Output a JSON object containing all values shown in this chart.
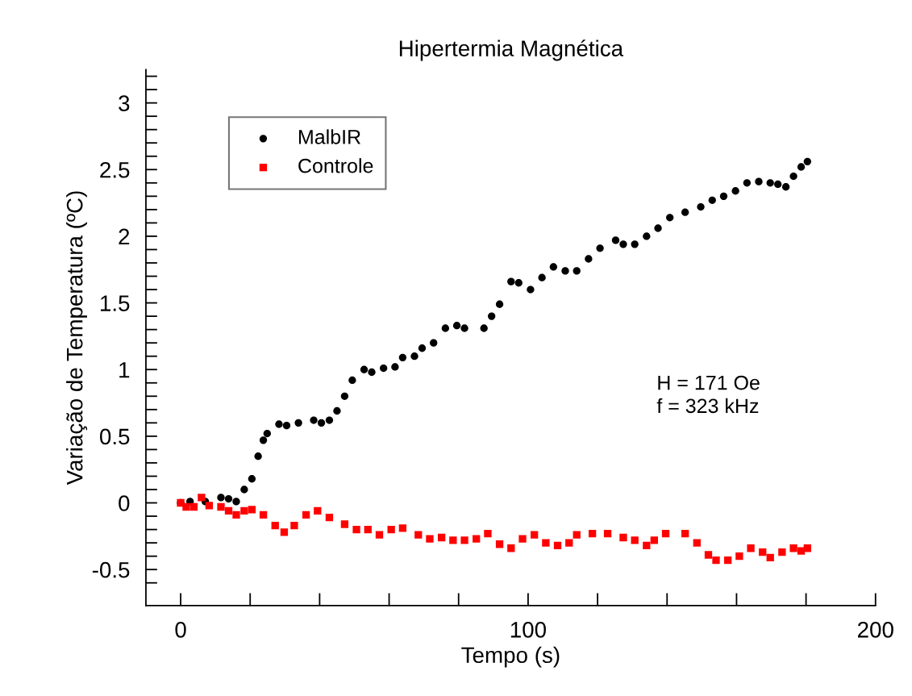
{
  "chart_data": {
    "type": "scatter",
    "title": "Hipertermia Magnética",
    "xlabel": "Tempo (s)",
    "ylabel": "Variação de Temperatura (ºC)",
    "annotations": [
      "H = 171 Oe\nf = 323 kHz"
    ],
    "xlim": [
      -10,
      200
    ],
    "ylim": [
      -0.77,
      3.25
    ],
    "xticks": [
      0,
      {
        "value": 20,
        "label": null
      },
      {
        "value": 40,
        "label": null
      },
      {
        "value": 60,
        "label": null
      },
      {
        "value": 80,
        "label": null
      },
      100,
      {
        "value": 120,
        "label": null
      },
      {
        "value": 140,
        "label": null
      },
      {
        "value": 160,
        "label": null
      },
      {
        "value": 180,
        "label": null
      },
      200
    ],
    "yticks": [
      {
        "value": -0.6,
        "label": null
      },
      -0.5,
      {
        "value": -0.4,
        "label": null
      },
      {
        "value": -0.3,
        "label": null
      },
      {
        "value": -0.2,
        "label": null
      },
      {
        "value": -0.1,
        "label": null
      },
      0,
      {
        "value": 0.1,
        "label": null
      },
      {
        "value": 0.2,
        "label": null
      },
      {
        "value": 0.3,
        "label": null
      },
      {
        "value": 0.4,
        "label": null
      },
      0.5,
      {
        "value": 0.6,
        "label": null
      },
      {
        "value": 0.7,
        "label": null
      },
      {
        "value": 0.8,
        "label": null
      },
      {
        "value": 0.9,
        "label": null
      },
      1,
      {
        "value": 1.1,
        "label": null
      },
      {
        "value": 1.2,
        "label": null
      },
      {
        "value": 1.3,
        "label": null
      },
      {
        "value": 1.4,
        "label": null
      },
      1.5,
      {
        "value": 1.6,
        "label": null
      },
      {
        "value": 1.7,
        "label": null
      },
      {
        "value": 1.8,
        "label": null
      },
      {
        "value": 1.9,
        "label": null
      },
      2,
      {
        "value": 2.1,
        "label": null
      },
      {
        "value": 2.2,
        "label": null
      },
      {
        "value": 2.3,
        "label": null
      },
      {
        "value": 2.4,
        "label": null
      },
      2.5,
      {
        "value": 2.6,
        "label": null
      },
      {
        "value": 2.7,
        "label": null
      },
      {
        "value": 2.8,
        "label": null
      },
      {
        "value": 2.9,
        "label": null
      },
      3,
      {
        "value": 3.1,
        "label": null
      },
      {
        "value": 3.2,
        "label": null
      }
    ],
    "grid": false,
    "legend": "top left",
    "series": [
      {
        "name": "MalbIR",
        "color": "#000000",
        "marker": "circle",
        "x": [
          0,
          2.7,
          7.1,
          11.6,
          13.8,
          16.0,
          18.3,
          20.5,
          22.3,
          23.8,
          24.9,
          28.3,
          30.5,
          33.9,
          38.3,
          40.5,
          42.8,
          45.0,
          47.2,
          49.4,
          52.8,
          55.0,
          58.4,
          61.7,
          63.9,
          67.3,
          69.5,
          72.8,
          76.2,
          79.5,
          81.7,
          87.3,
          89.5,
          91.8,
          95.1,
          97.3,
          100.7,
          104.0,
          107.3,
          110.7,
          114.0,
          117.4,
          120.7,
          125.2,
          127.4,
          130.7,
          134.1,
          137.4,
          140.8,
          145.2,
          149.7,
          153.0,
          156.3,
          159.7,
          163.0,
          166.4,
          169.7,
          171.9,
          174.2,
          176.4,
          178.6,
          180.4
        ],
        "values": [
          0,
          0.01,
          0.01,
          0.04,
          0.03,
          0.01,
          0.1,
          0.18,
          0.35,
          0.47,
          0.52,
          0.59,
          0.58,
          0.6,
          0.62,
          0.6,
          0.62,
          0.69,
          0.8,
          0.92,
          1.0,
          0.98,
          1.01,
          1.02,
          1.09,
          1.1,
          1.16,
          1.2,
          1.31,
          1.33,
          1.31,
          1.31,
          1.4,
          1.49,
          1.66,
          1.65,
          1.6,
          1.69,
          1.77,
          1.74,
          1.74,
          1.83,
          1.91,
          1.97,
          1.94,
          1.94,
          2.0,
          2.06,
          2.14,
          2.18,
          2.22,
          2.27,
          2.3,
          2.34,
          2.4,
          2.41,
          2.4,
          2.39,
          2.37,
          2.45,
          2.52,
          2.56
        ]
      },
      {
        "name": "Controle",
        "color": "#ff0000",
        "marker": "square",
        "x": [
          0,
          1.6,
          3.8,
          6.0,
          8.2,
          11.6,
          13.8,
          16.0,
          18.3,
          20.5,
          23.8,
          27.2,
          29.8,
          32.7,
          36.1,
          39.4,
          42.8,
          47.2,
          50.6,
          53.9,
          57.2,
          60.6,
          63.9,
          68.4,
          71.7,
          75.1,
          78.4,
          81.7,
          85.1,
          88.4,
          91.8,
          95.1,
          98.4,
          101.8,
          105.1,
          108.5,
          111.8,
          114.0,
          118.5,
          122.9,
          127.4,
          130.7,
          134.1,
          136.3,
          139.6,
          145.2,
          148.6,
          151.9,
          154.1,
          157.5,
          160.8,
          164.1,
          167.5,
          169.7,
          173.1,
          176.4,
          178.6,
          180.4
        ],
        "values": [
          0,
          -0.03,
          -0.03,
          0.04,
          -0.02,
          -0.03,
          -0.06,
          -0.09,
          -0.06,
          -0.05,
          -0.09,
          -0.17,
          -0.22,
          -0.17,
          -0.09,
          -0.06,
          -0.11,
          -0.16,
          -0.2,
          -0.2,
          -0.24,
          -0.2,
          -0.19,
          -0.24,
          -0.27,
          -0.26,
          -0.28,
          -0.28,
          -0.27,
          -0.23,
          -0.31,
          -0.34,
          -0.27,
          -0.24,
          -0.3,
          -0.32,
          -0.3,
          -0.24,
          -0.23,
          -0.23,
          -0.26,
          -0.28,
          -0.32,
          -0.28,
          -0.23,
          -0.23,
          -0.3,
          -0.39,
          -0.43,
          -0.43,
          -0.4,
          -0.34,
          -0.37,
          -0.41,
          -0.37,
          -0.34,
          -0.36,
          -0.34
        ]
      }
    ]
  }
}
